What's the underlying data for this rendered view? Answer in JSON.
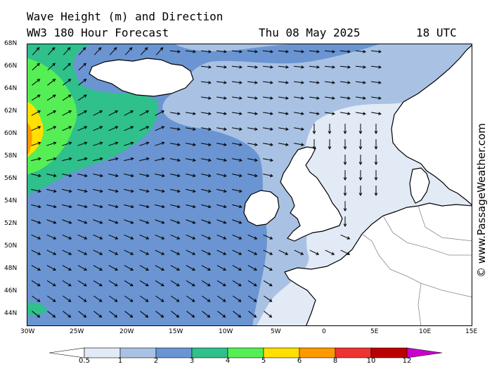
{
  "header": {
    "title_line1": "Wave Height (m) and Direction",
    "title_line2": "WW3 180 Hour Forecast",
    "date": "Thu 08 May 2025",
    "time": "18 UTC"
  },
  "axes": {
    "lat_labels": [
      "68N",
      "66N",
      "64N",
      "62N",
      "60N",
      "58N",
      "56N",
      "54N",
      "52N",
      "50N",
      "48N",
      "46N",
      "44N"
    ],
    "lon_labels": [
      "30W",
      "25W",
      "20W",
      "15W",
      "10W",
      "5W",
      "0",
      "5E",
      "10E",
      "15E"
    ]
  },
  "legend": {
    "ticks": [
      "0.5",
      "1",
      "2",
      "3",
      "4",
      "5",
      "6",
      "8",
      "10",
      "12"
    ],
    "colors": [
      "#ffffff",
      "#e2eaf6",
      "#a9c2e4",
      "#6a95d2",
      "#2fc08c",
      "#55ee55",
      "#ffe000",
      "#ff9900",
      "#ee3333",
      "#bb0000",
      "#cc00cc"
    ]
  },
  "credit": "© www.PassageWeather.com",
  "map_colors": {
    "land": "#ffffff",
    "coast": "#000000",
    "arrow": "#000000"
  }
}
